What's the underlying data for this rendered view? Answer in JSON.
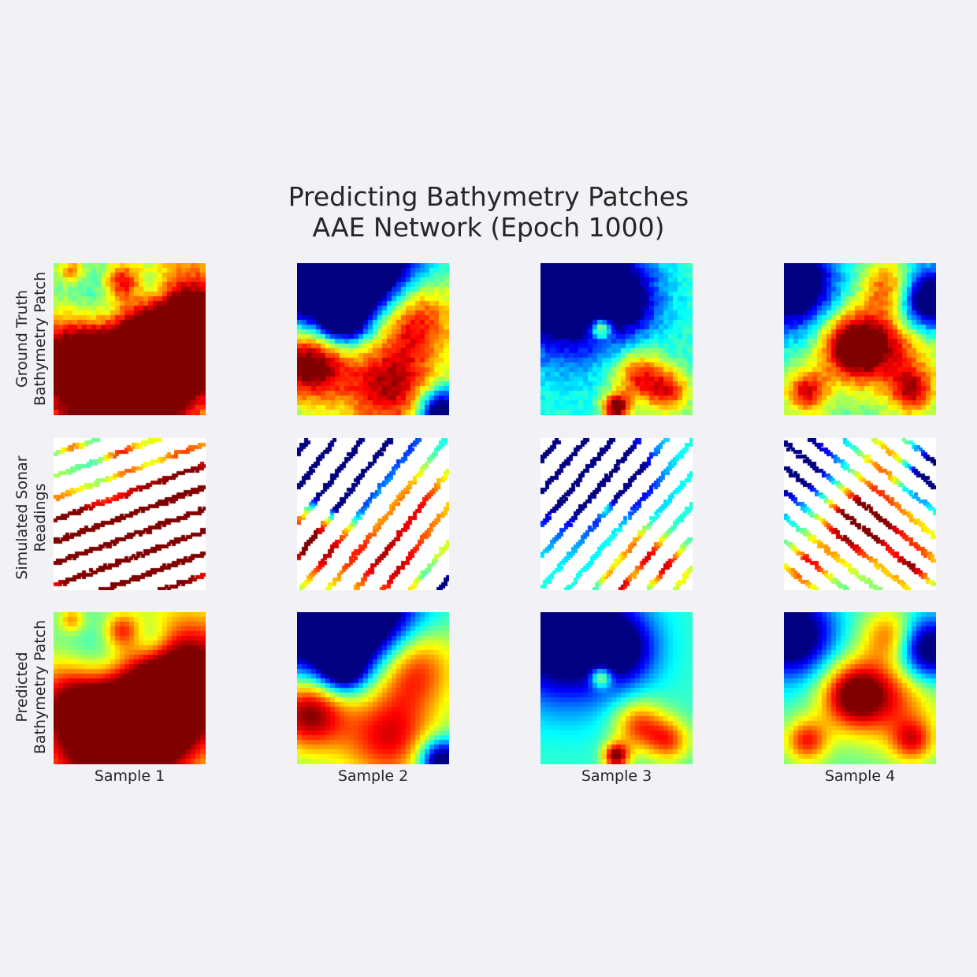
{
  "title_lines": [
    "Predicting Bathymetry Patches",
    "AAE Network (Epoch 1000)"
  ],
  "row_labels": [
    [
      "Ground Truth",
      "Bathymetry Patch"
    ],
    [
      "Simulated Sonar",
      "Readings"
    ],
    [
      "Predicted",
      "Bathymetry Patch"
    ]
  ],
  "column_labels": [
    "Sample 1",
    "Sample 2",
    "Sample 3",
    "Sample 4"
  ],
  "colormap": "jet",
  "chart_data": {
    "type": "heatmap",
    "grid": "off",
    "colormap": "jet",
    "rows": [
      "Ground Truth Bathymetry Patch",
      "Simulated Sonar Readings",
      "Predicted Bathymetry Patch"
    ],
    "columns": [
      "Sample 1",
      "Sample 2",
      "Sample 3",
      "Sample 4"
    ],
    "patch_resolution": [
      32,
      32
    ],
    "value_range": [
      0,
      1
    ],
    "samples": [
      {
        "blobs": [
          {
            "cx": 0.88,
            "cy": 0.45,
            "r": 0.3,
            "a": 0.75
          },
          {
            "cx": 0.35,
            "cy": 0.85,
            "r": 0.32,
            "a": 0.7
          },
          {
            "cx": 0.6,
            "cy": 0.75,
            "r": 0.25,
            "a": 0.45
          },
          {
            "cx": 0.15,
            "cy": 0.55,
            "r": 0.2,
            "a": 0.4
          },
          {
            "cx": 0.45,
            "cy": 0.12,
            "r": 0.08,
            "a": 0.35
          },
          {
            "cx": 0.12,
            "cy": 0.05,
            "r": 0.06,
            "a": 0.3
          },
          {
            "cx": 0.3,
            "cy": 0.35,
            "r": 0.18,
            "a": -0.35
          },
          {
            "cx": 0.65,
            "cy": 0.18,
            "r": 0.1,
            "a": -0.25
          }
        ],
        "base": 0.45,
        "sonar": {
          "angle_deg": 20,
          "spacing": 0.085,
          "min_along": 0.05,
          "max_along": 1.0,
          "lines": 9
        }
      },
      {
        "blobs": [
          {
            "cx": 0.15,
            "cy": 0.08,
            "r": 0.3,
            "a": -0.75
          },
          {
            "cx": 0.5,
            "cy": 0.05,
            "r": 0.25,
            "a": -0.6
          },
          {
            "cx": 0.3,
            "cy": 0.38,
            "r": 0.1,
            "a": -0.5
          },
          {
            "cx": 0.95,
            "cy": 0.98,
            "r": 0.1,
            "a": -0.7
          },
          {
            "cx": 0.08,
            "cy": 0.65,
            "r": 0.18,
            "a": 0.7
          },
          {
            "cx": 0.75,
            "cy": 0.35,
            "r": 0.2,
            "a": 0.55
          },
          {
            "cx": 0.6,
            "cy": 0.82,
            "r": 0.22,
            "a": 0.5
          }
        ],
        "base": 0.45,
        "sonar": {
          "angle_deg": 52,
          "spacing": 0.09,
          "min_along": 0.0,
          "max_along": 1.0,
          "lines": 10
        }
      },
      {
        "blobs": [
          {
            "cx": 0.18,
            "cy": 0.15,
            "r": 0.3,
            "a": -0.75
          },
          {
            "cx": 0.55,
            "cy": 0.25,
            "r": 0.15,
            "a": -0.35
          },
          {
            "cx": 0.4,
            "cy": 0.43,
            "r": 0.05,
            "a": 0.55
          },
          {
            "cx": 0.65,
            "cy": 0.75,
            "r": 0.12,
            "a": 0.45
          },
          {
            "cx": 0.85,
            "cy": 0.85,
            "r": 0.1,
            "a": 0.4
          },
          {
            "cx": 0.5,
            "cy": 0.95,
            "r": 0.06,
            "a": 0.65
          }
        ],
        "base": 0.42,
        "sonar": {
          "angle_deg": 50,
          "spacing": 0.085,
          "min_along": 0.0,
          "max_along": 0.85,
          "lines": 10
        }
      },
      {
        "blobs": [
          {
            "cx": 0.05,
            "cy": 0.15,
            "r": 0.2,
            "a": -0.7
          },
          {
            "cx": 0.95,
            "cy": 0.25,
            "r": 0.15,
            "a": -0.7
          },
          {
            "cx": 0.45,
            "cy": 0.55,
            "r": 0.15,
            "a": 0.55
          },
          {
            "cx": 0.7,
            "cy": 0.55,
            "r": 0.22,
            "a": 0.4
          },
          {
            "cx": 0.7,
            "cy": 0.15,
            "r": 0.12,
            "a": 0.35
          },
          {
            "cx": 0.15,
            "cy": 0.85,
            "r": 0.1,
            "a": 0.45
          },
          {
            "cx": 0.85,
            "cy": 0.85,
            "r": 0.1,
            "a": 0.4
          }
        ],
        "base": 0.45,
        "sonar": {
          "angle_deg": -38,
          "spacing": 0.08,
          "min_along": 0.0,
          "max_along": 0.85,
          "lines": 10
        }
      }
    ]
  }
}
